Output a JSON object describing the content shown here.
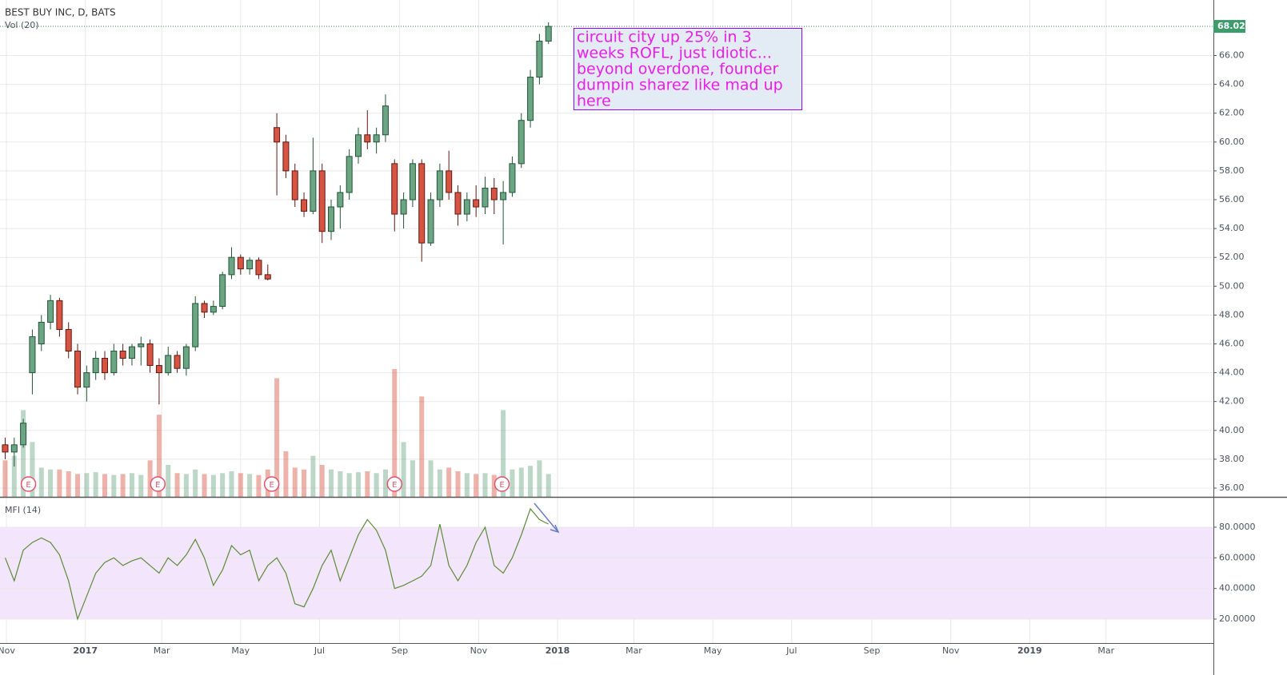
{
  "chart_data": [
    {
      "type": "candlestick",
      "title": "BEST BUY INC, D, BATS",
      "volume_label": "Vol (20)",
      "x": [
        0,
        7,
        14,
        21,
        28,
        35,
        42,
        49,
        56,
        63,
        70,
        77,
        84,
        91,
        98,
        105,
        112,
        119,
        126,
        133,
        140,
        147,
        154,
        161,
        168,
        175,
        182,
        189,
        196,
        203,
        210,
        217,
        224,
        231,
        238,
        245,
        252,
        259,
        266,
        273,
        280,
        287,
        294,
        301,
        308,
        315,
        322,
        329,
        336,
        343,
        350,
        357,
        364,
        371,
        378,
        385,
        392,
        399,
        406,
        413,
        420
      ],
      "open": [
        39.0,
        38.5,
        39.0,
        44.0,
        46.0,
        47.5,
        49.0,
        47.0,
        45.5,
        43.0,
        44.0,
        45.0,
        44.0,
        45.5,
        45.0,
        45.8,
        46.0,
        44.5,
        44.0,
        45.2,
        44.3,
        45.8,
        48.8,
        48.2,
        48.6,
        50.8,
        52.0,
        51.2,
        51.8,
        50.8,
        61.0,
        60.0,
        58.0,
        56.0,
        55.2,
        58.0,
        53.8,
        55.5,
        56.5,
        59.0,
        60.5,
        60.0,
        60.5,
        58.5,
        55.0,
        56.0,
        58.5,
        53.0,
        56.0,
        58.0,
        56.5,
        55.0,
        56.0,
        55.5,
        56.8,
        56.0,
        56.5,
        58.5,
        61.5,
        64.5,
        67.0
      ],
      "high": [
        39.5,
        39.5,
        40.8,
        47.0,
        48.0,
        49.4,
        49.2,
        47.5,
        46.0,
        44.5,
        45.5,
        45.5,
        46.0,
        46.0,
        46.0,
        46.5,
        46.3,
        45.0,
        45.8,
        45.5,
        46.0,
        49.3,
        49.0,
        49.0,
        51.0,
        52.7,
        52.2,
        52.0,
        52.0,
        51.5,
        62.0,
        60.5,
        58.5,
        56.5,
        60.3,
        58.5,
        56.0,
        57.0,
        59.5,
        61.0,
        62.2,
        61.0,
        63.3,
        58.8,
        56.5,
        58.8,
        58.8,
        56.5,
        58.5,
        59.4,
        57.0,
        56.5,
        57.0,
        57.6,
        57.5,
        57.3,
        59.0,
        62.0,
        65.0,
        67.5,
        68.3
      ],
      "low": [
        38.0,
        37.5,
        38.8,
        42.5,
        45.5,
        47.0,
        46.5,
        45.0,
        42.5,
        42.0,
        43.5,
        43.5,
        43.8,
        44.5,
        44.5,
        44.5,
        44.0,
        41.8,
        43.8,
        44.0,
        43.8,
        45.5,
        47.8,
        48.0,
        48.4,
        50.5,
        50.8,
        50.8,
        50.5,
        50.4,
        56.3,
        57.5,
        55.5,
        54.8,
        55.0,
        53.0,
        53.2,
        54.0,
        56.0,
        58.5,
        59.5,
        59.2,
        60.0,
        53.8,
        54.0,
        55.5,
        51.7,
        52.8,
        55.5,
        56.0,
        54.2,
        54.5,
        54.8,
        55.0,
        55.0,
        52.9,
        56.2,
        58.2,
        61.0,
        64.0,
        66.8
      ],
      "close": [
        38.5,
        39.0,
        40.5,
        46.5,
        47.5,
        49.0,
        47.0,
        45.5,
        43.0,
        44.0,
        45.0,
        44.0,
        45.5,
        45.0,
        45.8,
        46.0,
        44.5,
        44.0,
        45.2,
        44.3,
        45.8,
        48.8,
        48.2,
        48.6,
        50.8,
        52.0,
        51.2,
        51.8,
        50.8,
        50.5,
        60.0,
        58.0,
        56.0,
        55.2,
        58.0,
        53.8,
        55.5,
        56.5,
        59.0,
        60.5,
        60.0,
        60.5,
        62.5,
        55.0,
        56.0,
        58.5,
        53.0,
        56.0,
        58.0,
        56.5,
        55.0,
        56.0,
        55.5,
        56.8,
        56.0,
        56.5,
        58.5,
        61.5,
        64.5,
        67.0,
        68.02
      ],
      "volume": [
        4.0,
        4.5,
        9.5,
        6.0,
        3.2,
        3.0,
        3.0,
        2.8,
        2.5,
        2.6,
        2.7,
        2.5,
        2.4,
        2.5,
        2.6,
        2.4,
        4.0,
        9.0,
        3.5,
        2.6,
        2.5,
        3.0,
        2.5,
        2.4,
        2.6,
        2.8,
        2.6,
        2.5,
        2.4,
        3.0,
        13.0,
        5.0,
        3.2,
        3.0,
        4.5,
        3.5,
        3.0,
        2.8,
        2.6,
        2.7,
        2.8,
        2.6,
        3.0,
        14.0,
        6.0,
        4.0,
        11.0,
        4.0,
        3.0,
        3.2,
        2.8,
        2.6,
        2.5,
        2.6,
        2.4,
        9.5,
        3.0,
        3.2,
        3.4,
        4.0,
        2.5
      ],
      "up_color": "#6ba583",
      "down_color": "#d75442",
      "up_border": "#225437",
      "down_border": "#5b1a13",
      "ylim": [
        35.39,
        69.85
      ],
      "yticks": [
        {
          "value": 36,
          "label": "36.00"
        },
        {
          "value": 38,
          "label": "38.00"
        },
        {
          "value": 40,
          "label": "40.00"
        },
        {
          "value": 42,
          "label": "42.00"
        },
        {
          "value": 44,
          "label": "44.00"
        },
        {
          "value": 46,
          "label": "46.00"
        },
        {
          "value": 48,
          "label": "48.00"
        },
        {
          "value": 50,
          "label": "50.00"
        },
        {
          "value": 52,
          "label": "52.00"
        },
        {
          "value": 54,
          "label": "54.00"
        },
        {
          "value": 56,
          "label": "56.00"
        },
        {
          "value": 58,
          "label": "58.00"
        },
        {
          "value": 60,
          "label": "60.00"
        },
        {
          "value": 62,
          "label": "62.00"
        },
        {
          "value": 64,
          "label": "64.00"
        },
        {
          "value": 66,
          "label": "66.00"
        }
      ],
      "last_price": 68.02,
      "xlim": [
        -4,
        934
      ],
      "xticks": [
        {
          "value": 1,
          "label": "Nov"
        },
        {
          "value": 62,
          "label": "2017"
        },
        {
          "value": 121,
          "label": "Mar"
        },
        {
          "value": 182,
          "label": "May"
        },
        {
          "value": 243,
          "label": "Jul"
        },
        {
          "value": 305,
          "label": "Sep"
        },
        {
          "value": 366,
          "label": "Nov"
        },
        {
          "value": 427,
          "label": "2018"
        },
        {
          "value": 486,
          "label": "Mar"
        },
        {
          "value": 547,
          "label": "May"
        },
        {
          "value": 608,
          "label": "Jul"
        },
        {
          "value": 670,
          "label": "Sep"
        },
        {
          "value": 731,
          "label": "Nov"
        },
        {
          "value": 792,
          "label": "2019"
        },
        {
          "value": 851,
          "label": "Mar"
        }
      ],
      "earnings": [
        {
          "x": 18,
          "label": "E"
        },
        {
          "x": 118,
          "label": "E"
        },
        {
          "x": 206,
          "label": "E"
        },
        {
          "x": 301,
          "label": "E"
        },
        {
          "x": 384,
          "label": "E"
        }
      ],
      "annotation": [
        "circuit city up 25% in 3",
        "weeks ROFL, just idiotic...",
        "beyond overdone, founder",
        "dumpin sharez like mad up",
        "here"
      ]
    },
    {
      "type": "line",
      "title": "MFI (14)",
      "color": "#5b8c38",
      "values": [
        60,
        45,
        65,
        70,
        73,
        70,
        62,
        45,
        20,
        35,
        50,
        57,
        60,
        55,
        58,
        60,
        55,
        50,
        60,
        55,
        62,
        72,
        60,
        42,
        52,
        68,
        62,
        65,
        45,
        55,
        60,
        50,
        30,
        28,
        40,
        55,
        65,
        45,
        60,
        75,
        85,
        78,
        65,
        40,
        42,
        45,
        48,
        55,
        82,
        55,
        45,
        55,
        70,
        80,
        55,
        50,
        60,
        75,
        92,
        85,
        82
      ],
      "band": [
        20,
        80
      ],
      "ylim": [
        4.35,
        99.8
      ],
      "yticks": [
        {
          "value": 20,
          "label": "20.0000"
        },
        {
          "value": 40,
          "label": "40.0000"
        },
        {
          "value": 60,
          "label": "60.0000"
        },
        {
          "value": 80,
          "label": "80.0000"
        }
      ]
    }
  ]
}
